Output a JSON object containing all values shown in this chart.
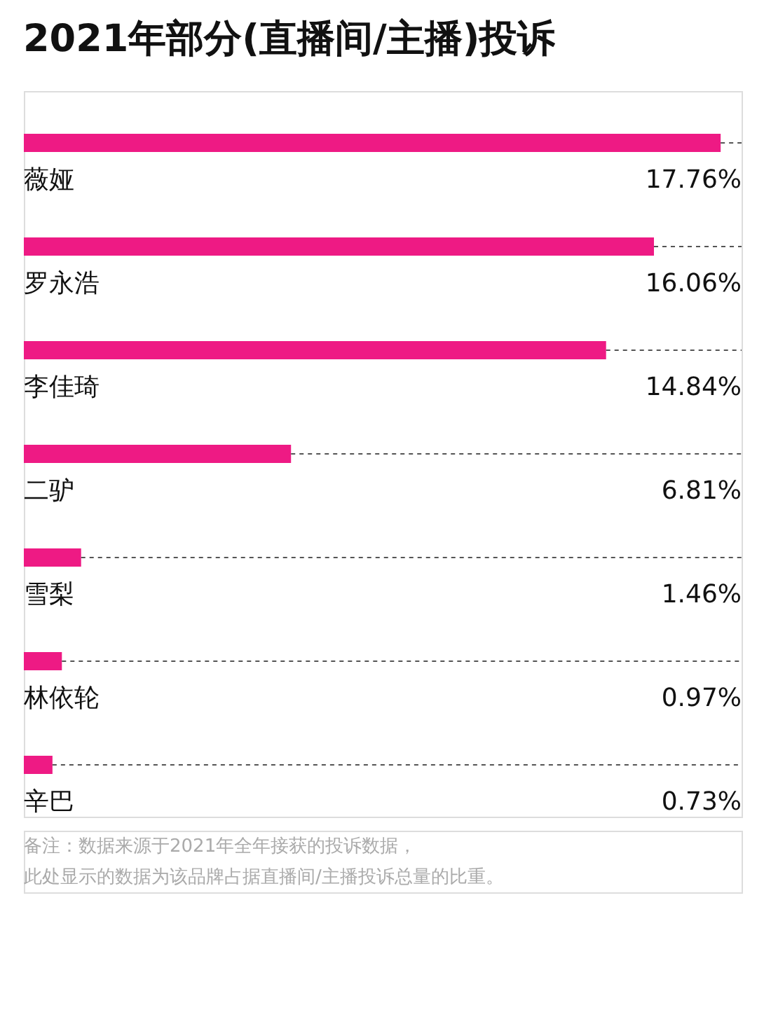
{
  "chart_data": {
    "type": "bar",
    "orientation": "horizontal",
    "title": "2021年部分(直播间/主播)投诉",
    "categories": [
      "薇娅",
      "罗永浩",
      "李佳琦",
      "二驴",
      "雪梨",
      "林依轮",
      "辛巴"
    ],
    "values": [
      17.76,
      16.06,
      14.84,
      6.81,
      1.46,
      0.97,
      0.73
    ],
    "value_labels": [
      "17.76%",
      "16.06%",
      "14.84%",
      "6.81%",
      "1.46%",
      "0.97%",
      "0.73%"
    ],
    "color": "#ee1a84",
    "tick_labels": false,
    "annotations": [
      "备注：数据来源于2021年全年接获的投诉数据，",
      "此处显示的数据为该品牌占据直播间/主播投诉总量的比重。"
    ]
  }
}
